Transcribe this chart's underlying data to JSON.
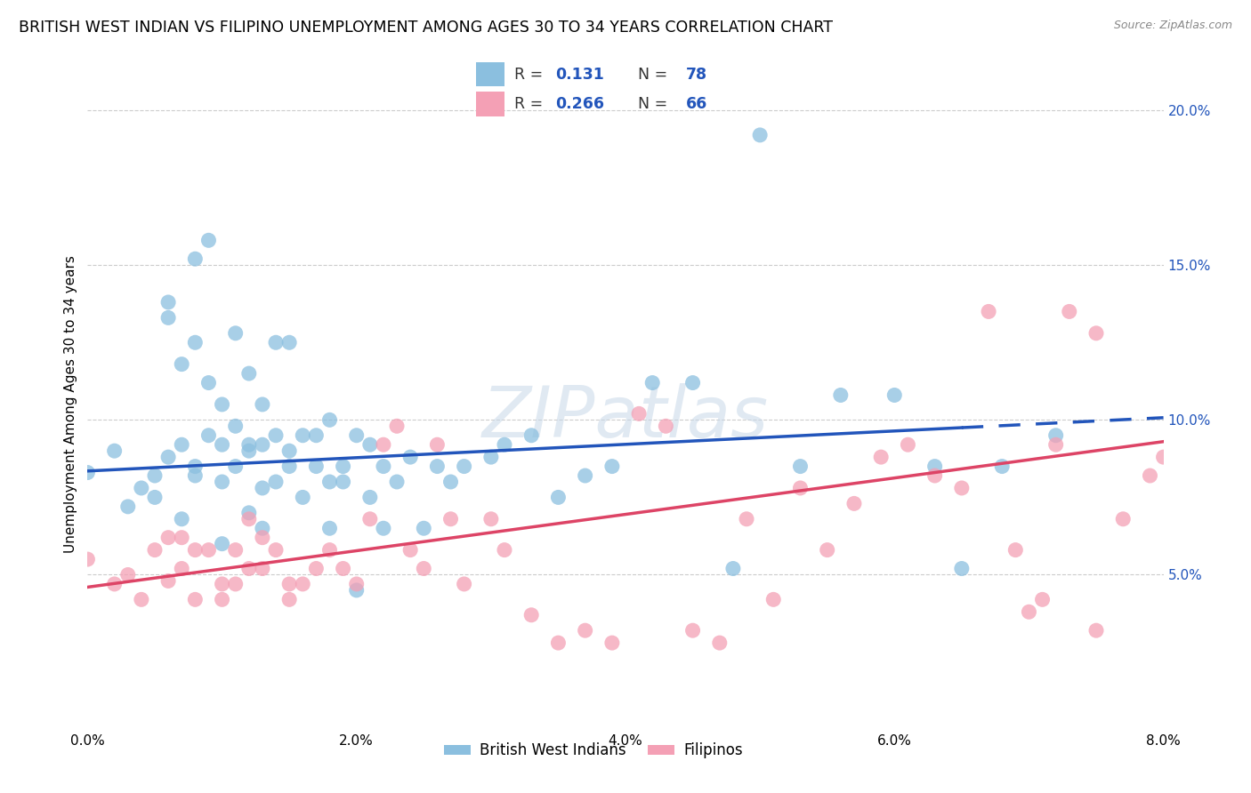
{
  "title": "BRITISH WEST INDIAN VS FILIPINO UNEMPLOYMENT AMONG AGES 30 TO 34 YEARS CORRELATION CHART",
  "source": "Source: ZipAtlas.com",
  "ylabel": "Unemployment Among Ages 30 to 34 years",
  "x_min": 0.0,
  "x_max": 0.08,
  "y_min": 0.0,
  "y_max": 0.21,
  "y_ticks": [
    0.05,
    0.1,
    0.15,
    0.2
  ],
  "y_tick_labels": [
    "5.0%",
    "10.0%",
    "15.0%",
    "20.0%"
  ],
  "x_ticks": [
    0.0,
    0.01,
    0.02,
    0.03,
    0.04,
    0.05,
    0.06,
    0.07,
    0.08
  ],
  "x_tick_labels": [
    "0.0%",
    "",
    "2.0%",
    "",
    "4.0%",
    "",
    "6.0%",
    "",
    "8.0%"
  ],
  "blue_color": "#8bbfdf",
  "pink_color": "#f4a0b5",
  "blue_line_color": "#2255bb",
  "pink_line_color": "#dd4466",
  "title_fontsize": 12.5,
  "axis_label_fontsize": 11,
  "tick_fontsize": 11,
  "legend_label1": "British West Indians",
  "legend_label2": "Filipinos",
  "R_blue": "0.131",
  "N_blue": "78",
  "R_pink": "0.266",
  "N_pink": "66",
  "blue_scatter_x": [
    0.0,
    0.002,
    0.003,
    0.004,
    0.005,
    0.005,
    0.006,
    0.006,
    0.006,
    0.007,
    0.007,
    0.007,
    0.008,
    0.008,
    0.008,
    0.008,
    0.009,
    0.009,
    0.009,
    0.01,
    0.01,
    0.01,
    0.01,
    0.011,
    0.011,
    0.011,
    0.012,
    0.012,
    0.012,
    0.012,
    0.013,
    0.013,
    0.013,
    0.013,
    0.014,
    0.014,
    0.014,
    0.015,
    0.015,
    0.015,
    0.016,
    0.016,
    0.017,
    0.017,
    0.018,
    0.018,
    0.018,
    0.019,
    0.019,
    0.02,
    0.02,
    0.021,
    0.021,
    0.022,
    0.022,
    0.023,
    0.024,
    0.025,
    0.026,
    0.027,
    0.028,
    0.03,
    0.031,
    0.033,
    0.035,
    0.037,
    0.039,
    0.042,
    0.045,
    0.048,
    0.05,
    0.053,
    0.056,
    0.06,
    0.063,
    0.065,
    0.068,
    0.072
  ],
  "blue_scatter_y": [
    0.083,
    0.09,
    0.072,
    0.078,
    0.082,
    0.075,
    0.133,
    0.138,
    0.088,
    0.092,
    0.068,
    0.118,
    0.125,
    0.082,
    0.085,
    0.152,
    0.158,
    0.112,
    0.095,
    0.105,
    0.08,
    0.092,
    0.06,
    0.098,
    0.128,
    0.085,
    0.09,
    0.115,
    0.07,
    0.092,
    0.105,
    0.078,
    0.065,
    0.092,
    0.125,
    0.095,
    0.08,
    0.09,
    0.125,
    0.085,
    0.095,
    0.075,
    0.085,
    0.095,
    0.1,
    0.065,
    0.08,
    0.085,
    0.08,
    0.045,
    0.095,
    0.075,
    0.092,
    0.065,
    0.085,
    0.08,
    0.088,
    0.065,
    0.085,
    0.08,
    0.085,
    0.088,
    0.092,
    0.095,
    0.075,
    0.082,
    0.085,
    0.112,
    0.112,
    0.052,
    0.192,
    0.085,
    0.108,
    0.108,
    0.085,
    0.052,
    0.085,
    0.095
  ],
  "pink_scatter_x": [
    0.0,
    0.002,
    0.003,
    0.004,
    0.005,
    0.006,
    0.006,
    0.007,
    0.007,
    0.008,
    0.008,
    0.009,
    0.01,
    0.01,
    0.011,
    0.011,
    0.012,
    0.012,
    0.013,
    0.013,
    0.014,
    0.015,
    0.015,
    0.016,
    0.017,
    0.018,
    0.019,
    0.02,
    0.021,
    0.022,
    0.023,
    0.024,
    0.025,
    0.026,
    0.027,
    0.028,
    0.03,
    0.031,
    0.033,
    0.035,
    0.037,
    0.039,
    0.041,
    0.043,
    0.045,
    0.047,
    0.049,
    0.051,
    0.053,
    0.055,
    0.057,
    0.059,
    0.061,
    0.063,
    0.065,
    0.067,
    0.069,
    0.071,
    0.073,
    0.075,
    0.077,
    0.079,
    0.08,
    0.075,
    0.072,
    0.07
  ],
  "pink_scatter_y": [
    0.055,
    0.047,
    0.05,
    0.042,
    0.058,
    0.062,
    0.048,
    0.062,
    0.052,
    0.058,
    0.042,
    0.058,
    0.047,
    0.042,
    0.047,
    0.058,
    0.052,
    0.068,
    0.062,
    0.052,
    0.058,
    0.047,
    0.042,
    0.047,
    0.052,
    0.058,
    0.052,
    0.047,
    0.068,
    0.092,
    0.098,
    0.058,
    0.052,
    0.092,
    0.068,
    0.047,
    0.068,
    0.058,
    0.037,
    0.028,
    0.032,
    0.028,
    0.102,
    0.098,
    0.032,
    0.028,
    0.068,
    0.042,
    0.078,
    0.058,
    0.073,
    0.088,
    0.092,
    0.082,
    0.078,
    0.135,
    0.058,
    0.042,
    0.135,
    0.032,
    0.068,
    0.082,
    0.088,
    0.128,
    0.092,
    0.038
  ],
  "watermark_text": "ZIPatlas",
  "blue_trend_solid_end": 0.065,
  "blue_trend_dash_end": 0.08
}
